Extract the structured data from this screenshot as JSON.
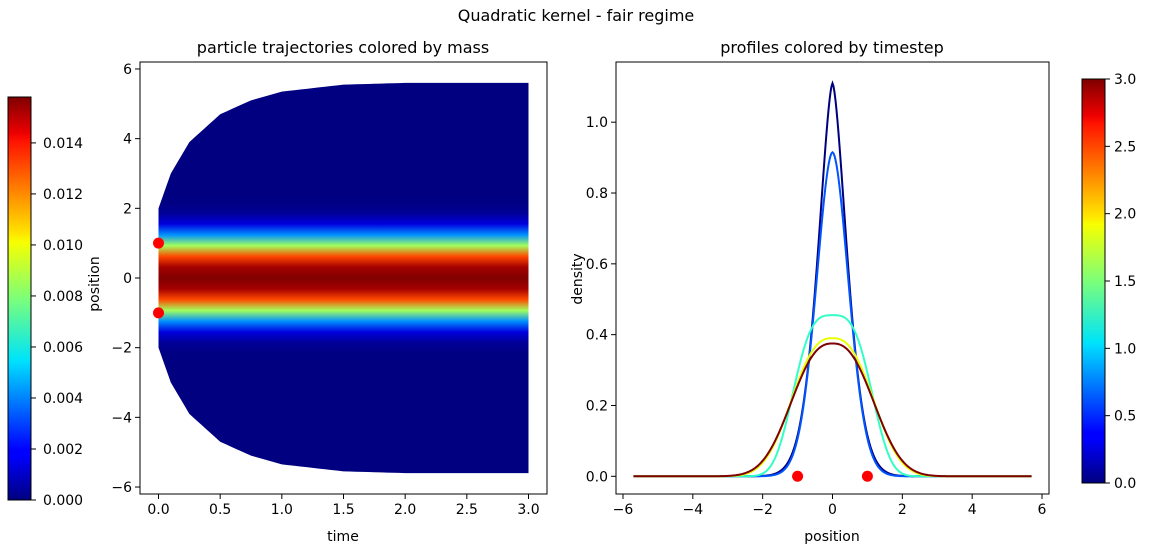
{
  "suptitle": "Quadratic kernel - fair regime",
  "chart_data": [
    {
      "type": "heatmap",
      "title": "particle trajectories colored by mass",
      "xlabel": "time",
      "ylabel": "position",
      "xlim": [
        -0.15,
        3.15
      ],
      "ylim": [
        -6.2,
        6.2
      ],
      "xticks": [
        0.0,
        0.5,
        1.0,
        1.5,
        2.0,
        2.5,
        3.0
      ],
      "xtick_labels": [
        "0.0",
        "0.5",
        "1.0",
        "1.5",
        "2.0",
        "2.5",
        "3.0"
      ],
      "yticks": [
        -6,
        -4,
        -2,
        0,
        2,
        4,
        6
      ],
      "ytick_labels": [
        "−6",
        "−4",
        "−2",
        "0",
        "2",
        "4",
        "6"
      ],
      "colorscale": "jet",
      "envelope_halfwidth": {
        "t": [
          0.0,
          0.1,
          0.25,
          0.5,
          0.75,
          1.0,
          1.5,
          2.0,
          3.0
        ],
        "halfwidth": [
          2.0,
          3.0,
          3.9,
          4.7,
          5.1,
          5.35,
          5.55,
          5.6,
          5.6
        ]
      },
      "mass_band_sigma": {
        "t": [
          0.0,
          0.2,
          0.5,
          1.0,
          3.0
        ],
        "sigma": [
          0.35,
          0.72,
          0.82,
          0.85,
          0.86
        ]
      },
      "markers": {
        "x": [
          0.0,
          0.0
        ],
        "y": [
          1.0,
          -1.0
        ],
        "color": "#ff0000"
      },
      "colorbar": {
        "range": [
          0.0,
          0.0158
        ],
        "ticks": [
          0.0,
          0.002,
          0.004,
          0.006,
          0.008,
          0.01,
          0.012,
          0.014
        ],
        "tick_labels": [
          "0.000",
          "0.002",
          "0.004",
          "0.006",
          "0.008",
          "0.010",
          "0.012",
          "0.014"
        ]
      }
    },
    {
      "type": "line",
      "title": "profiles colored by timestep",
      "xlabel": "position",
      "ylabel": "density",
      "xlim": [
        -6.2,
        6.2
      ],
      "ylim": [
        -0.05,
        1.17
      ],
      "xticks": [
        -6,
        -4,
        -2,
        0,
        2,
        4,
        6
      ],
      "xtick_labels": [
        "−6",
        "−4",
        "−2",
        "0",
        "2",
        "4",
        "6"
      ],
      "yticks": [
        0.0,
        0.2,
        0.4,
        0.6,
        0.8,
        1.0
      ],
      "ytick_labels": [
        "0.0",
        "0.2",
        "0.4",
        "0.6",
        "0.8",
        "1.0"
      ],
      "x_range": [
        -5.7,
        5.7
      ],
      "series": [
        {
          "timestep": 0.0,
          "color": "#00007f",
          "peak": 1.11,
          "halfwidth": 1.0,
          "shape": 8,
          "edge": 1.0
        },
        {
          "timestep": 0.4,
          "color": "#0055ff",
          "peak": 0.915,
          "halfwidth": 1.1,
          "shape": 5,
          "edge": 1.15
        },
        {
          "timestep": 1.2,
          "color": "#33ffc4",
          "peak": 0.455,
          "halfwidth": 2.15,
          "shape": 3,
          "edge": 2.0
        },
        {
          "timestep": 2.0,
          "color": "#e8ff00",
          "peak": 0.39,
          "halfwidth": 2.4,
          "shape": 5,
          "edge": 1.6
        },
        {
          "timestep": 3.0,
          "color": "#7f0000",
          "peak": 0.375,
          "halfwidth": 2.45,
          "shape": 6,
          "edge": 1.55
        }
      ],
      "markers": {
        "x": [
          -1.0,
          1.0
        ],
        "y": [
          0.0,
          0.0
        ],
        "color": "#ff0000"
      },
      "colorbar": {
        "range": [
          0.0,
          3.0
        ],
        "ticks": [
          0.0,
          0.5,
          1.0,
          1.5,
          2.0,
          2.5,
          3.0
        ],
        "tick_labels": [
          "0.0",
          "0.5",
          "1.0",
          "1.5",
          "2.0",
          "2.5",
          "3.0"
        ]
      }
    }
  ]
}
